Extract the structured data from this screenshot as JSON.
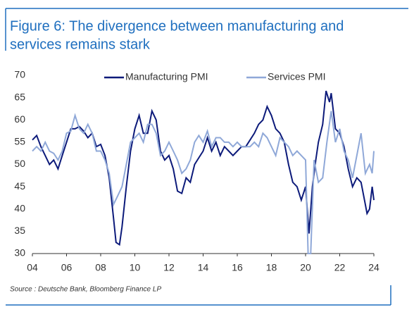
{
  "chart_data": {
    "type": "line",
    "title": "Figure 6: The divergence between manufacturing and",
    "title_line2": "services remains stark",
    "source": "Source : Deutsche Bank, Bloomberg Finance LP",
    "xlim": [
      2004,
      2024
    ],
    "ylim": [
      30,
      70
    ],
    "xticks": [
      {
        "value": 2004,
        "label": "04"
      },
      {
        "value": 2006,
        "label": "06"
      },
      {
        "value": 2008,
        "label": "08"
      },
      {
        "value": 2010,
        "label": "10"
      },
      {
        "value": 2012,
        "label": "12"
      },
      {
        "value": 2014,
        "label": "14"
      },
      {
        "value": 2016,
        "label": "16"
      },
      {
        "value": 2018,
        "label": "18"
      },
      {
        "value": 2020,
        "label": "20"
      },
      {
        "value": 2022,
        "label": "22"
      },
      {
        "value": 2024,
        "label": "24"
      }
    ],
    "yticks": [
      30,
      35,
      40,
      45,
      50,
      55,
      60,
      65,
      70
    ],
    "legend": "top",
    "series": [
      {
        "name": "Manufacturing PMI",
        "color": "#0c1a7a",
        "x": [
          2004.0,
          2004.25,
          2004.5,
          2004.75,
          2005.0,
          2005.25,
          2005.5,
          2005.75,
          2006.0,
          2006.25,
          2006.5,
          2006.75,
          2007.0,
          2007.25,
          2007.5,
          2007.75,
          2008.0,
          2008.25,
          2008.5,
          2008.75,
          2008.9,
          2009.1,
          2009.25,
          2009.5,
          2009.75,
          2010.0,
          2010.25,
          2010.5,
          2010.75,
          2011.0,
          2011.25,
          2011.5,
          2011.75,
          2012.0,
          2012.25,
          2012.5,
          2012.75,
          2013.0,
          2013.25,
          2013.5,
          2013.75,
          2014.0,
          2014.25,
          2014.5,
          2014.75,
          2015.0,
          2015.25,
          2015.5,
          2015.75,
          2016.0,
          2016.25,
          2016.5,
          2016.75,
          2017.0,
          2017.25,
          2017.5,
          2017.75,
          2018.0,
          2018.25,
          2018.5,
          2018.75,
          2019.0,
          2019.25,
          2019.5,
          2019.75,
          2020.0,
          2020.2,
          2020.4,
          2020.6,
          2020.75,
          2021.0,
          2021.2,
          2021.4,
          2021.5,
          2021.75,
          2022.0,
          2022.25,
          2022.5,
          2022.75,
          2023.0,
          2023.25,
          2023.5,
          2023.6,
          2023.75,
          2023.9,
          2024.0
        ],
        "values": [
          55.5,
          56.5,
          54,
          52,
          50,
          51,
          49,
          52,
          55,
          58,
          58,
          58.5,
          57.5,
          56,
          57,
          54,
          54.5,
          52,
          47,
          38,
          32.5,
          32,
          36,
          45,
          53,
          58,
          61,
          57,
          57,
          62,
          60,
          53,
          51,
          52,
          49,
          44,
          43.5,
          47,
          46,
          50,
          51.5,
          53,
          56,
          53,
          55,
          52,
          54,
          53,
          52,
          53,
          54,
          54,
          55.5,
          57,
          59,
          60,
          63,
          61,
          58,
          57,
          55,
          50,
          46,
          45,
          42,
          45,
          34.5,
          45,
          51,
          55,
          59,
          66.5,
          64,
          66,
          58,
          57,
          54,
          49,
          45,
          47,
          46,
          41,
          39,
          40,
          45,
          42
        ]
      },
      {
        "name": "Services PMI",
        "color": "#8fa8d8",
        "x": [
          2004.0,
          2004.25,
          2004.5,
          2004.75,
          2005.0,
          2005.25,
          2005.5,
          2005.75,
          2006.0,
          2006.25,
          2006.5,
          2006.75,
          2007.0,
          2007.25,
          2007.5,
          2007.75,
          2008.0,
          2008.25,
          2008.5,
          2008.75,
          2009.0,
          2009.25,
          2009.5,
          2009.75,
          2010.0,
          2010.25,
          2010.5,
          2010.75,
          2011.0,
          2011.25,
          2011.5,
          2011.75,
          2012.0,
          2012.25,
          2012.5,
          2012.75,
          2013.0,
          2013.25,
          2013.5,
          2013.75,
          2014.0,
          2014.25,
          2014.5,
          2014.75,
          2015.0,
          2015.25,
          2015.5,
          2015.75,
          2016.0,
          2016.25,
          2016.5,
          2016.75,
          2017.0,
          2017.25,
          2017.5,
          2017.75,
          2018.0,
          2018.25,
          2018.5,
          2018.75,
          2019.0,
          2019.25,
          2019.5,
          2019.75,
          2020.0,
          2020.15,
          2020.3,
          2020.5,
          2020.75,
          2021.0,
          2021.25,
          2021.5,
          2021.75,
          2022.0,
          2022.25,
          2022.5,
          2022.75,
          2023.0,
          2023.25,
          2023.5,
          2023.75,
          2023.9,
          2024.0
        ],
        "values": [
          53,
          54,
          53,
          55,
          53,
          52.5,
          51,
          53,
          57,
          57.5,
          61,
          58,
          57,
          59,
          57,
          53,
          53,
          51,
          48,
          41,
          43,
          45,
          50,
          55,
          56,
          57,
          55,
          59,
          59,
          57,
          52,
          53,
          55,
          53,
          51,
          48,
          49,
          51,
          55,
          56.5,
          55,
          57.5,
          54,
          56,
          56,
          55,
          55,
          54,
          55,
          54,
          54,
          54,
          55,
          54,
          57,
          56,
          54,
          52,
          56,
          55,
          54,
          52,
          53,
          52,
          51,
          30,
          30,
          51,
          46,
          47,
          55,
          62,
          55,
          58,
          53,
          51,
          47,
          52,
          57,
          48,
          50,
          48,
          53
        ]
      }
    ]
  }
}
